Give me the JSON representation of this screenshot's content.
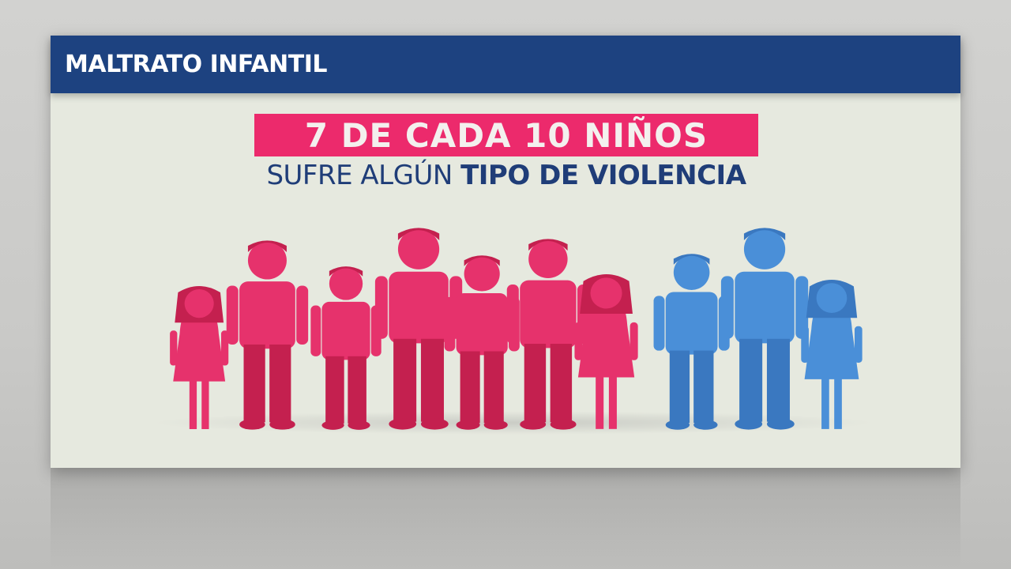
{
  "header": {
    "title": "MALTRATO INFANTIL"
  },
  "headline": {
    "stat": "7 DE CADA 10 NIÑOS",
    "subtitle_regular": "SUFRE ALGÚN ",
    "subtitle_bold": "TIPO DE VIOLENCIA"
  },
  "colors": {
    "header": "#1d4280",
    "affected": "#e6326c",
    "not_affected": "#4a8fd8",
    "banner": "#ec2a6c"
  },
  "children": [
    {
      "figure": "girl-icon",
      "affected": true
    },
    {
      "figure": "boy-icon",
      "affected": true
    },
    {
      "figure": "boy-icon",
      "affected": true
    },
    {
      "figure": "boy-icon",
      "affected": true
    },
    {
      "figure": "boy-icon",
      "affected": true
    },
    {
      "figure": "boy-icon",
      "affected": true
    },
    {
      "figure": "girl-icon",
      "affected": true
    },
    {
      "figure": "boy-icon",
      "affected": false
    },
    {
      "figure": "boy-icon",
      "affected": false
    },
    {
      "figure": "girl-icon",
      "affected": false
    }
  ]
}
